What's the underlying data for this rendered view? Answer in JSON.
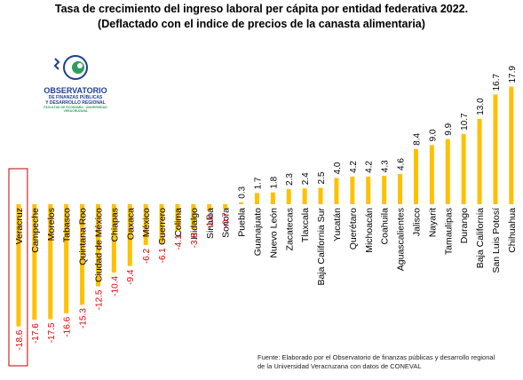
{
  "title_line1": "Tasa de crecimiento del ingreso laboral per cápita por entidad federativa 2022.",
  "title_line2": "(Deflactado con el indice de precios de la canasta alimentaria)",
  "logo": {
    "line1": "OBSERVATORIO",
    "line2": "DE FINANZAS PÚBLICAS",
    "line3": "Y DESARROLLO REGIONAL",
    "line4": "FACULTAD DE ECONOMÍA · UNIVERSIDAD VERACRUZANA",
    "accent": "#1f3f8f",
    "accent2": "#2e9d5b"
  },
  "footer_line1": "Fuente: Elaborado por el Observatorio de finanzas públicas y desarrollo regional",
  "footer_line2": "de la Universidad Veracruzana con datos de CONEVAL",
  "colors": {
    "bar": "#FFC000",
    "negative_label": "#E00000",
    "positive_label": "#000000",
    "highlight_box": "#C00000"
  },
  "chart_data": {
    "type": "bar",
    "title": "Tasa de crecimiento del ingreso laboral per cápita por entidad federativa 2022.",
    "subtitle": "(Deflactado con el indice de precios de la canasta alimentaria)",
    "xlabel": "",
    "ylabel": "",
    "categories": [
      "Veracruz",
      "Campeche",
      "Morelos",
      "Tabasco",
      "Quintana Roo",
      "Ciudad de México",
      "Chiapas",
      "Oaxaca",
      "México",
      "Guerrero",
      "Colima",
      "Hidalgo",
      "Sinaloa",
      "Sonora",
      "Puebla",
      "Guanajuato",
      "Nuevo León",
      "Zacatecas",
      "Tlaxcala",
      "Baja California Sur",
      "Yucatán",
      "Querétaro",
      "Michoacán",
      "Coahuila",
      "Aguascalientes",
      "Jalisco",
      "Nayarit",
      "Tamaulipas",
      "Durango",
      "Baja California",
      "San Luis Potosí",
      "Chihuahua"
    ],
    "values": [
      -18.6,
      -17.6,
      -17.5,
      -16.6,
      -15.3,
      -12.5,
      -10.4,
      -9.4,
      -6.2,
      -6.1,
      -4.1,
      -3.8,
      -1.0,
      -0.7,
      0.3,
      1.7,
      1.8,
      2.3,
      2.4,
      2.5,
      4.0,
      4.2,
      4.2,
      4.3,
      4.6,
      8.4,
      9.0,
      9.9,
      10.7,
      13.0,
      16.7,
      17.9
    ],
    "value_labels": [
      "-18.6",
      "-17.6",
      "-17.5",
      "-16.6",
      "-15.3",
      "-12.5",
      "-10.4",
      "-9.4",
      "-6.2",
      "-6.1",
      "-4.1",
      "-3.8",
      "-1.0",
      "-0.7",
      "0.3",
      "1.7",
      "1.8",
      "2.3",
      "2.4",
      "2.5",
      "4.0",
      "4.2",
      "4.2",
      "4.3",
      "4.6",
      "8.4",
      "9.0",
      "9.9",
      "10.7",
      "13.0",
      "16.7",
      "17.9"
    ],
    "ylim": [
      -19,
      18.5
    ],
    "grid": false,
    "legend": "none",
    "highlight_category": "Veracruz"
  }
}
